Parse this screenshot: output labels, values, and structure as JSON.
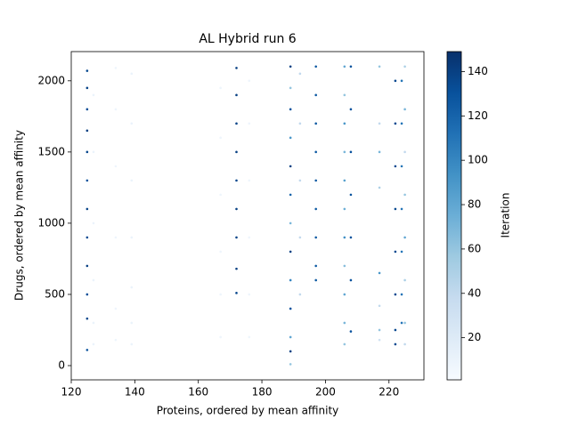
{
  "chart_data": {
    "type": "scatter",
    "title": "AL Hybrid run 6",
    "x_label": "Proteins, ordered by mean affinity",
    "y_label": "Drugs, ordered by mean affinity",
    "colorbar_label": "Iteration",
    "colormap": [
      "#f7fbff",
      "#deebf7",
      "#c6dbef",
      "#9ecae1",
      "#6baed6",
      "#4292c6",
      "#2171b5",
      "#08519c",
      "#08306b"
    ],
    "xlim": [
      120,
      231
    ],
    "ylim": [
      -100,
      2205
    ],
    "clim": [
      1,
      149
    ],
    "xticks": [
      120,
      140,
      160,
      180,
      200,
      220
    ],
    "yticks": [
      0,
      500,
      1000,
      1500,
      2000
    ],
    "cticks": [
      20,
      40,
      60,
      80,
      100,
      120,
      140
    ],
    "x": [
      125,
      125,
      125,
      125,
      125,
      125,
      125,
      125,
      125,
      125,
      125,
      125,
      127,
      127,
      127,
      127,
      127,
      127,
      134,
      134,
      134,
      134,
      134,
      134,
      139,
      139,
      139,
      139,
      139,
      139,
      139,
      167,
      167,
      167,
      167,
      167,
      167,
      172,
      172,
      172,
      172,
      172,
      172,
      172,
      172,
      172,
      176,
      176,
      176,
      176,
      176,
      176,
      189,
      189,
      189,
      189,
      189,
      189,
      189,
      189,
      189,
      189,
      189,
      189,
      189,
      192,
      192,
      192,
      192,
      192,
      197,
      197,
      197,
      197,
      197,
      197,
      197,
      197,
      197,
      206,
      206,
      206,
      206,
      206,
      206,
      206,
      206,
      206,
      206,
      206,
      208,
      208,
      208,
      208,
      208,
      208,
      208,
      217,
      217,
      217,
      217,
      217,
      217,
      217,
      217,
      222,
      222,
      222,
      222,
      222,
      222,
      222,
      222,
      224,
      224,
      224,
      224,
      224,
      224,
      224,
      225,
      225,
      225,
      225,
      225,
      225,
      225,
      225
    ],
    "y": [
      2070,
      1950,
      1800,
      1650,
      1500,
      1300,
      1100,
      900,
      700,
      500,
      330,
      110,
      1900,
      1500,
      1000,
      600,
      300,
      150,
      2090,
      1800,
      1400,
      900,
      400,
      180,
      2050,
      1700,
      1300,
      900,
      550,
      300,
      150,
      1950,
      1600,
      1200,
      800,
      500,
      200,
      2090,
      1900,
      1700,
      1500,
      1300,
      1100,
      900,
      680,
      510,
      2000,
      1700,
      1300,
      900,
      500,
      200,
      2100,
      1950,
      1800,
      1600,
      1400,
      1200,
      1000,
      800,
      600,
      400,
      200,
      100,
      10,
      2050,
      1700,
      1300,
      900,
      500,
      2100,
      1900,
      1700,
      1500,
      1300,
      1100,
      900,
      700,
      600,
      2100,
      1900,
      1700,
      1500,
      1300,
      1100,
      900,
      700,
      500,
      300,
      150,
      2100,
      1800,
      1500,
      1200,
      900,
      600,
      240,
      2100,
      1700,
      1500,
      1250,
      650,
      420,
      250,
      180,
      2000,
      1700,
      1400,
      1100,
      800,
      500,
      250,
      150,
      2000,
      1700,
      1400,
      1100,
      800,
      500,
      300,
      2100,
      1800,
      1500,
      1200,
      900,
      600,
      300,
      150
    ],
    "c": [
      135,
      138,
      132,
      140,
      136,
      130,
      138,
      134,
      140,
      132,
      136,
      130,
      10,
      10,
      10,
      10,
      10,
      10,
      8,
      8,
      8,
      8,
      8,
      8,
      10,
      10,
      10,
      10,
      10,
      10,
      10,
      8,
      8,
      8,
      8,
      8,
      8,
      140,
      140,
      138,
      140,
      136,
      140,
      138,
      140,
      136,
      8,
      8,
      8,
      8,
      8,
      8,
      140,
      60,
      130,
      90,
      140,
      120,
      70,
      140,
      100,
      130,
      80,
      140,
      60,
      40,
      40,
      40,
      40,
      40,
      125,
      125,
      125,
      125,
      125,
      125,
      125,
      125,
      125,
      80,
      60,
      90,
      70,
      85,
      75,
      95,
      65,
      80,
      70,
      60,
      130,
      130,
      130,
      130,
      130,
      130,
      130,
      60,
      40,
      70,
      50,
      90,
      40,
      60,
      30,
      135,
      135,
      135,
      135,
      135,
      135,
      135,
      135,
      110,
      110,
      110,
      110,
      110,
      110,
      110,
      50,
      70,
      40,
      60,
      80,
      50,
      60,
      40
    ]
  }
}
